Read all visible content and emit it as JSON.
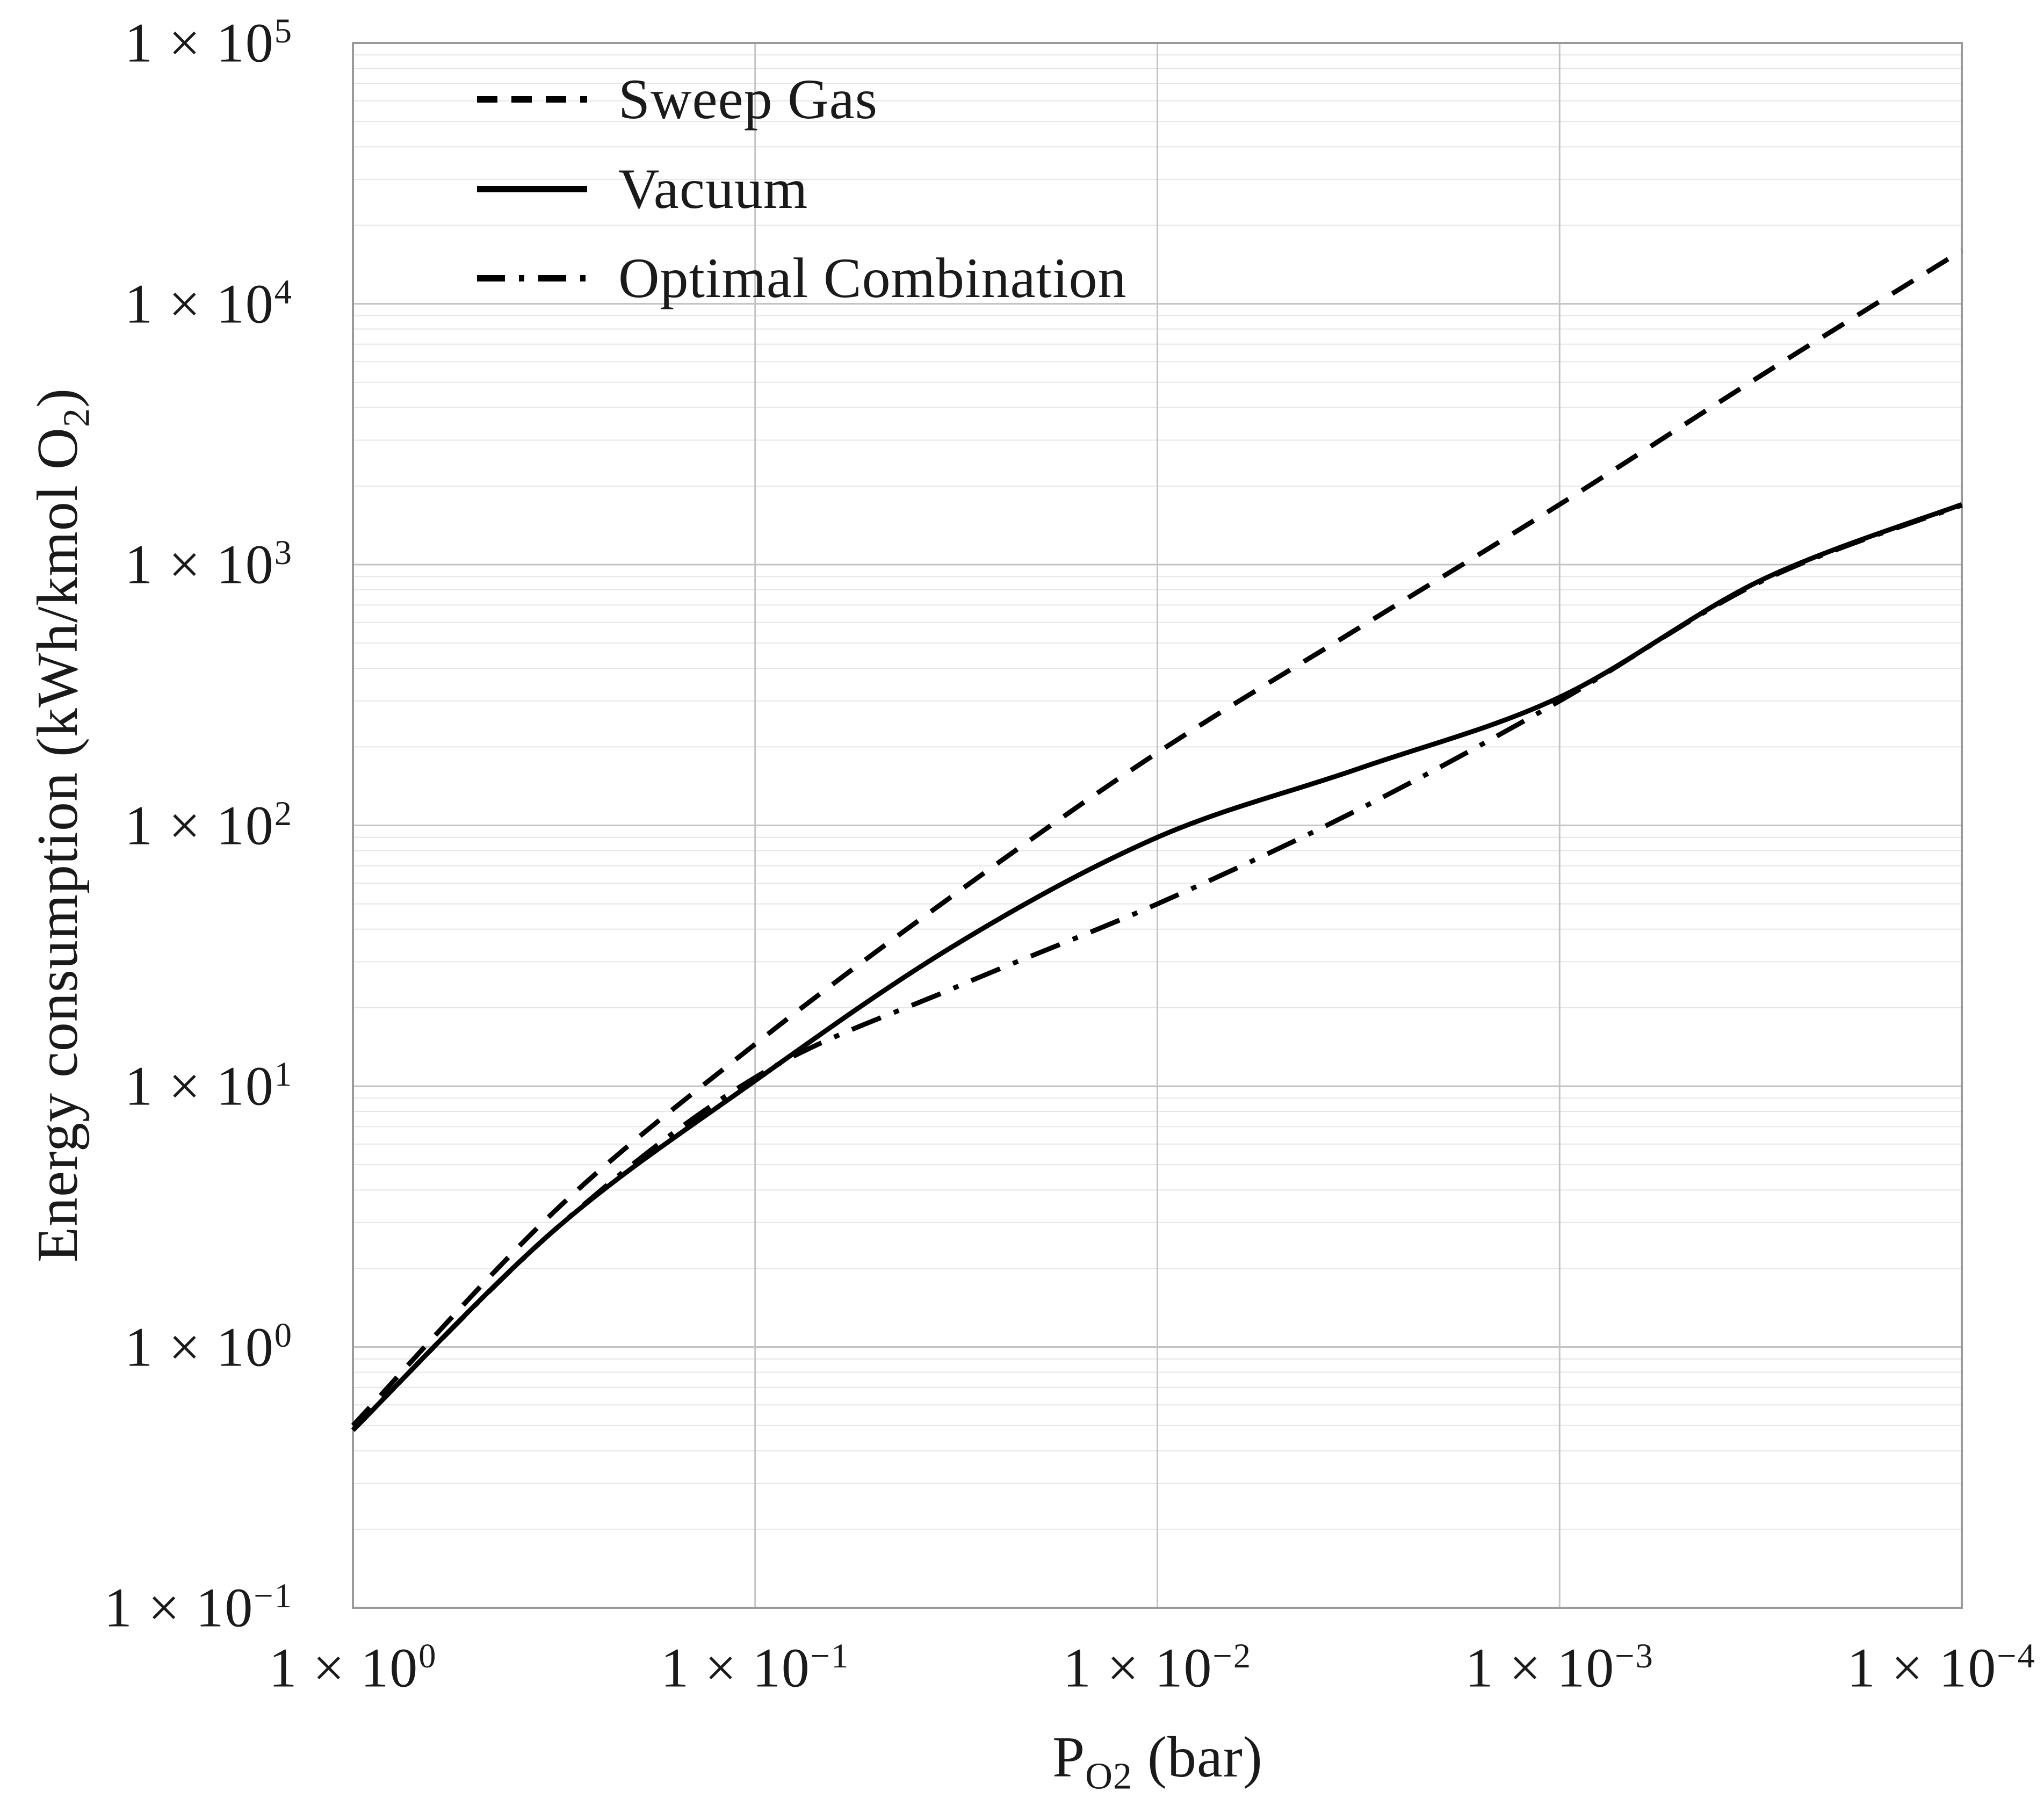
{
  "figure": {
    "background": "#ffffff",
    "plot_border_color": "#9a9a9a",
    "major_grid_color": "#c4c4c4",
    "minor_grid_color": "#e6e6e6",
    "text_color": "#1a1a1a",
    "series_color": "#000000"
  },
  "chart_data": {
    "type": "line",
    "title": "",
    "xlabel": "P_O2 (bar)",
    "xlabel_parts": {
      "main": "P",
      "sub": "O2",
      "rest": " (bar)"
    },
    "ylabel": "Energy consumption (kWh/kmol O2)",
    "ylabel_parts": {
      "main": "Energy consumption (kWh/kmol O",
      "sub": "2",
      "rest": ")"
    },
    "x_axis": {
      "scale": "log",
      "reversed": true,
      "limits": [
        1,
        0.0001
      ],
      "tick_base": "1 × 10",
      "tick_exponents": [
        "0",
        "−1",
        "−2",
        "−3",
        "−4"
      ]
    },
    "y_axis": {
      "scale": "log",
      "limits": [
        0.1,
        100000
      ],
      "tick_base": "1 × 10",
      "tick_exponents": [
        "5",
        "4",
        "3",
        "2",
        "1",
        "0",
        "−1"
      ]
    },
    "grid": {
      "x_major": true,
      "x_minor": false,
      "y_major": true,
      "y_minor": true
    },
    "legend": {
      "position": "top-left",
      "entries": [
        "Sweep Gas",
        "Vacuum",
        "Optimal Combination"
      ]
    },
    "series": [
      {
        "name": "Sweep Gas",
        "line_style": "dashed",
        "color": "#000000",
        "x": [
          1,
          0.3162,
          0.1,
          0.03162,
          0.01,
          0.003162,
          0.001,
          0.0003162,
          0.0001
        ],
        "y": [
          0.5,
          3.3,
          14.5,
          55,
          190,
          570,
          1700,
          5300,
          16000
        ]
      },
      {
        "name": "Vacuum",
        "line_style": "solid",
        "color": "#000000",
        "x": [
          1,
          0.3162,
          0.1,
          0.03162,
          0.01,
          0.003162,
          0.001,
          0.0003162,
          0.0001
        ],
        "y": [
          0.48,
          2.8,
          10.5,
          35,
          90,
          165,
          310,
          870,
          1700
        ]
      },
      {
        "name": "Optimal Combination",
        "line_style": "dashdot",
        "color": "#000000",
        "x": [
          1,
          0.3162,
          0.1,
          0.03162,
          0.01,
          0.003162,
          0.001,
          0.0003162,
          0.0001
        ],
        "y": [
          0.48,
          2.8,
          10.8,
          24,
          50,
          115,
          300,
          860,
          1690
        ]
      }
    ]
  }
}
